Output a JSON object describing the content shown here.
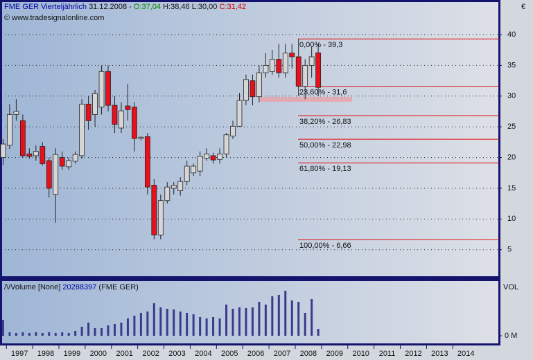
{
  "chart_data": [
    {
      "type": "candlestick",
      "title": "FME GER Vierteljährlich",
      "date": "31.12.2008 -",
      "last_labels": {
        "open": "O:37,04",
        "high": "H:38,46",
        "low": "L:30,00",
        "close": "C:31,42"
      },
      "watermark": "© www.tradesignalonline.com",
      "unit": "€",
      "x": [
        1996.875,
        1997.125,
        1997.375,
        1997.625,
        1997.875,
        1998.125,
        1998.375,
        1998.625,
        1998.875,
        1999.125,
        1999.375,
        1999.625,
        1999.875,
        2000.125,
        2000.375,
        2000.625,
        2000.875,
        2001.125,
        2001.375,
        2001.625,
        2001.875,
        2002.125,
        2002.375,
        2002.625,
        2002.875,
        2003.125,
        2003.375,
        2003.625,
        2003.875,
        2004.125,
        2004.375,
        2004.625,
        2004.875,
        2005.125,
        2005.375,
        2005.625,
        2005.875,
        2006.125,
        2006.375,
        2006.625,
        2006.875,
        2007.125,
        2007.375,
        2007.625,
        2007.875,
        2008.125,
        2008.375,
        2008.625,
        2008.875
      ],
      "open": [
        20,
        22,
        27,
        26,
        20.6,
        20.3,
        21.8,
        19.5,
        14,
        20,
        18.5,
        19.4,
        20.3,
        28.7,
        27,
        28.2,
        34,
        28.5,
        24.8,
        28.4,
        28.2,
        23.1,
        23.4,
        15.5,
        7.4,
        13,
        15,
        14.6,
        16.1,
        17.5,
        17.8,
        19.9,
        20.3,
        19.7,
        20.6,
        23.5,
        25.1,
        29.3,
        32.5,
        29.9,
        33.8,
        34,
        36,
        33.8,
        37,
        36.4,
        31.6,
        35,
        37.04
      ],
      "high": [
        23,
        28.7,
        29.5,
        27,
        21.5,
        22,
        22.5,
        20,
        21.5,
        21,
        20,
        21,
        29.5,
        30,
        31,
        35,
        35,
        30,
        29,
        32,
        29,
        23.5,
        24,
        16.5,
        14,
        16,
        16,
        16.8,
        19.5,
        19,
        21,
        21.5,
        20.8,
        21.5,
        24,
        26,
        30.5,
        33.5,
        33.5,
        35,
        37,
        37.5,
        38.5,
        38.5,
        38.5,
        39.3,
        36,
        38,
        38.46
      ],
      "low": [
        18.8,
        21.4,
        26,
        20,
        19.8,
        19.5,
        18.7,
        13.5,
        9.4,
        18,
        18,
        19,
        19.8,
        24.5,
        25,
        27,
        27.5,
        24,
        24,
        26,
        21,
        22.8,
        14,
        6.7,
        6.7,
        12.5,
        14,
        13.8,
        15.5,
        17,
        17,
        19.5,
        19,
        19,
        20,
        23,
        25,
        28.5,
        28.5,
        29,
        33,
        33.5,
        33,
        33,
        34.5,
        30,
        29.5,
        33,
        30
      ],
      "close": [
        22.2,
        27,
        27.5,
        20.3,
        20.2,
        21,
        19,
        15,
        20.5,
        18.6,
        19.5,
        20.5,
        28.7,
        26,
        30.4,
        34,
        28.5,
        25.4,
        27.6,
        27.8,
        23.1,
        23.3,
        15.2,
        7.4,
        13,
        15.2,
        15.5,
        16.1,
        18.6,
        18.6,
        20.2,
        20.6,
        19.6,
        20.6,
        23.7,
        25.1,
        29.3,
        32.7,
        29.9,
        33.8,
        35,
        36,
        33.8,
        37,
        36.4,
        31.6,
        35,
        36.4,
        31.42
      ],
      "up_color": "#d6d6d6",
      "down_color": "#e8101c",
      "levels": [
        {
          "value": 39.3,
          "label": "0,00% - 39,3"
        },
        {
          "value": 31.6,
          "label": "23,60% - 31,6"
        },
        {
          "value": 26.83,
          "label": "38,20% - 26,83"
        },
        {
          "value": 22.98,
          "label": "50,00% - 22,98"
        },
        {
          "value": 19.13,
          "label": "61,80% - 19,13"
        },
        {
          "value": 6.66,
          "label": "100,00% - 6,66"
        }
      ],
      "level_color": "#e01010",
      "xlim": [
        1996.81,
        2015.76
      ],
      "xticks": [
        {
          "value": 1997.5,
          "label": "1997"
        },
        {
          "value": 1998.5,
          "label": "1998"
        },
        {
          "value": 1999.5,
          "label": "1999"
        },
        {
          "value": 2000.5,
          "label": "2000"
        },
        {
          "value": 2001.5,
          "label": "2001"
        },
        {
          "value": 2002.5,
          "label": "2002"
        },
        {
          "value": 2003.5,
          "label": "2003"
        },
        {
          "value": 2004.5,
          "label": "2004"
        },
        {
          "value": 2005.5,
          "label": "2005"
        },
        {
          "value": 2006.5,
          "label": "2006"
        },
        {
          "value": 2007.5,
          "label": "2007"
        },
        {
          "value": 2008.5,
          "label": "2008"
        },
        {
          "value": 2009.5,
          "label": "2009"
        },
        {
          "value": 2010.5,
          "label": "2010"
        },
        {
          "value": 2011.5,
          "label": "2011"
        },
        {
          "value": 2012.5,
          "label": "2012"
        },
        {
          "value": 2013.5,
          "label": "2013"
        },
        {
          "value": 2014.5,
          "label": "2014"
        }
      ],
      "ylim": [
        0.8,
        45.3
      ],
      "yticks": [
        5,
        10,
        15,
        20,
        25,
        30,
        35,
        40
      ],
      "grid": true
    },
    {
      "type": "bar",
      "title": "Volume [None]",
      "last_value_label": "20288397",
      "symbol": "(FME GER)",
      "axis_label": "VOL",
      "x": [
        1996.875,
        1997.125,
        1997.375,
        1997.625,
        1997.875,
        1998.125,
        1998.375,
        1998.625,
        1998.875,
        1999.125,
        1999.375,
        1999.625,
        1999.875,
        2000.125,
        2000.375,
        2000.625,
        2000.875,
        2001.125,
        2001.375,
        2001.625,
        2001.875,
        2002.125,
        2002.375,
        2002.625,
        2002.875,
        2003.125,
        2003.375,
        2003.625,
        2003.875,
        2004.125,
        2004.375,
        2004.625,
        2004.875,
        2005.125,
        2005.375,
        2005.625,
        2005.875,
        2006.125,
        2006.375,
        2006.625,
        2006.875,
        2007.125,
        2007.375,
        2007.625,
        2007.875,
        2008.125,
        2008.375,
        2008.625,
        2008.875
      ],
      "values": [
        46.7,
        10.2,
        8.1,
        10.2,
        8.1,
        10.2,
        8.1,
        10.2,
        8.1,
        10.2,
        8.1,
        14.2,
        26.4,
        38.6,
        22.3,
        22.3,
        30.5,
        34.5,
        38.6,
        50.8,
        58.9,
        67,
        71.1,
        95.4,
        83.2,
        79.2,
        77.1,
        71.1,
        67,
        62.9,
        54.8,
        50.8,
        54.8,
        50.8,
        91.4,
        79.2,
        83.2,
        81.2,
        83.2,
        99.5,
        91.4,
        115.7,
        119.8,
        132,
        103.5,
        99.5,
        67,
        107.6,
        20.29
      ],
      "color": "#3a3a8c",
      "xlim": [
        1996.81,
        2015.76
      ],
      "ylim": [
        -24.4,
        158.3
      ],
      "yticks": [
        {
          "value": 0,
          "label": "0 M"
        }
      ]
    }
  ]
}
